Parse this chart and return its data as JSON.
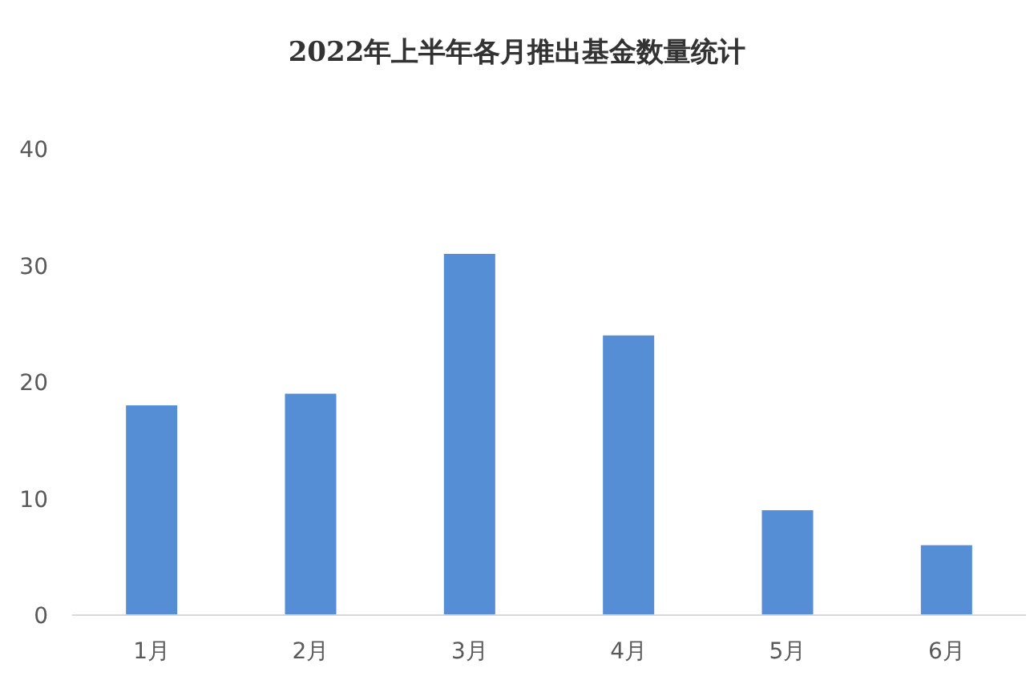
{
  "chart_data": {
    "type": "bar",
    "title": "2022年上半年各月推出基金数量统计",
    "categories": [
      "1月",
      "2月",
      "3月",
      "4月",
      "5月",
      "6月"
    ],
    "values": [
      18,
      19,
      31,
      24,
      9,
      6
    ],
    "color": "#558ed5",
    "ylim": [
      0,
      40
    ],
    "yticks": [
      0,
      10,
      20,
      30,
      40
    ],
    "grid": false
  }
}
